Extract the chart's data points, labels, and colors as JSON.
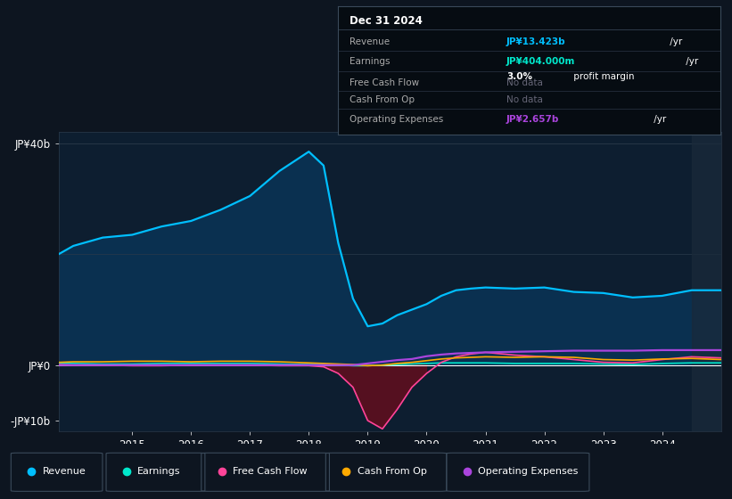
{
  "bg_color": "#0d1520",
  "plot_bg": "#0d1e30",
  "years": [
    2013.75,
    2014.0,
    2014.5,
    2015.0,
    2015.5,
    2016.0,
    2016.5,
    2017.0,
    2017.5,
    2018.0,
    2018.25,
    2018.5,
    2018.75,
    2019.0,
    2019.25,
    2019.5,
    2019.75,
    2020.0,
    2020.25,
    2020.5,
    2020.75,
    2021.0,
    2021.5,
    2022.0,
    2022.5,
    2023.0,
    2023.5,
    2024.0,
    2024.5,
    2025.0
  ],
  "revenue": [
    20.0,
    21.5,
    23.0,
    23.5,
    25.0,
    26.0,
    28.0,
    30.5,
    35.0,
    38.5,
    36.0,
    22.0,
    12.0,
    7.0,
    7.5,
    9.0,
    10.0,
    11.0,
    12.5,
    13.5,
    13.8,
    14.0,
    13.8,
    14.0,
    13.2,
    13.0,
    12.2,
    12.5,
    13.5,
    13.5
  ],
  "earnings": [
    0.3,
    0.3,
    0.2,
    0.2,
    0.3,
    0.3,
    0.3,
    0.3,
    0.2,
    0.1,
    0.1,
    0.0,
    -0.1,
    -0.1,
    0.0,
    0.1,
    0.2,
    0.3,
    0.4,
    0.4,
    0.4,
    0.4,
    0.3,
    0.3,
    0.3,
    0.2,
    0.1,
    0.3,
    0.4,
    0.4
  ],
  "free_cash_flow": [
    0.1,
    0.0,
    0.0,
    -0.1,
    -0.1,
    0.0,
    0.0,
    0.0,
    -0.1,
    -0.1,
    -0.3,
    -1.5,
    -4.0,
    -10.0,
    -11.5,
    -8.0,
    -4.0,
    -1.5,
    0.5,
    1.5,
    2.0,
    2.3,
    1.8,
    1.5,
    1.0,
    0.5,
    0.4,
    1.0,
    1.5,
    1.3
  ],
  "cash_from_op": [
    0.5,
    0.6,
    0.6,
    0.7,
    0.7,
    0.6,
    0.7,
    0.7,
    0.6,
    0.4,
    0.3,
    0.2,
    0.1,
    -0.1,
    0.0,
    0.3,
    0.5,
    0.8,
    1.1,
    1.3,
    1.4,
    1.5,
    1.4,
    1.5,
    1.4,
    1.0,
    0.9,
    1.1,
    1.2,
    1.0
  ],
  "op_expenses": [
    0.0,
    0.0,
    0.0,
    0.0,
    0.0,
    0.0,
    0.0,
    0.0,
    0.0,
    0.0,
    0.0,
    0.0,
    0.0,
    0.3,
    0.6,
    0.9,
    1.1,
    1.6,
    1.9,
    2.1,
    2.2,
    2.3,
    2.4,
    2.5,
    2.6,
    2.6,
    2.6,
    2.7,
    2.7,
    2.7
  ],
  "revenue_color": "#00bfff",
  "earnings_color": "#00e8cc",
  "fcf_color": "#ff4499",
  "cashop_color": "#ffaa00",
  "opex_color": "#aa44dd",
  "revenue_fill": "#0a3050",
  "fcf_fill_neg": "#5a1020",
  "ylim_min": -12,
  "ylim_max": 42,
  "ytick_vals": [
    -10,
    0,
    40
  ],
  "ytick_labels": [
    "-JP¥10b",
    "JP¥0",
    "JP¥40b"
  ],
  "xtick_vals": [
    2015,
    2016,
    2017,
    2018,
    2019,
    2020,
    2021,
    2022,
    2023,
    2024
  ],
  "xlim_min": 2013.75,
  "xlim_max": 2025.0,
  "highlight_start": 2024.5,
  "title_box": {
    "date": "Dec 31 2024",
    "revenue_label": "Revenue",
    "revenue_value": "JP¥13.423b",
    "revenue_unit": " /yr",
    "earnings_label": "Earnings",
    "earnings_value": "JP¥404.000m",
    "earnings_unit": " /yr",
    "margin_bold": "3.0%",
    "margin_text": " profit margin",
    "fcf_label": "Free Cash Flow",
    "fcf_value": "No data",
    "cashop_label": "Cash From Op",
    "cashop_value": "No data",
    "opex_label": "Operating Expenses",
    "opex_value": "JP¥2.657b",
    "opex_unit": " /yr"
  },
  "legend": [
    {
      "label": "Revenue",
      "color": "#00bfff"
    },
    {
      "label": "Earnings",
      "color": "#00e8cc"
    },
    {
      "label": "Free Cash Flow",
      "color": "#ff4499"
    },
    {
      "label": "Cash From Op",
      "color": "#ffaa00"
    },
    {
      "label": "Operating Expenses",
      "color": "#aa44dd"
    }
  ]
}
